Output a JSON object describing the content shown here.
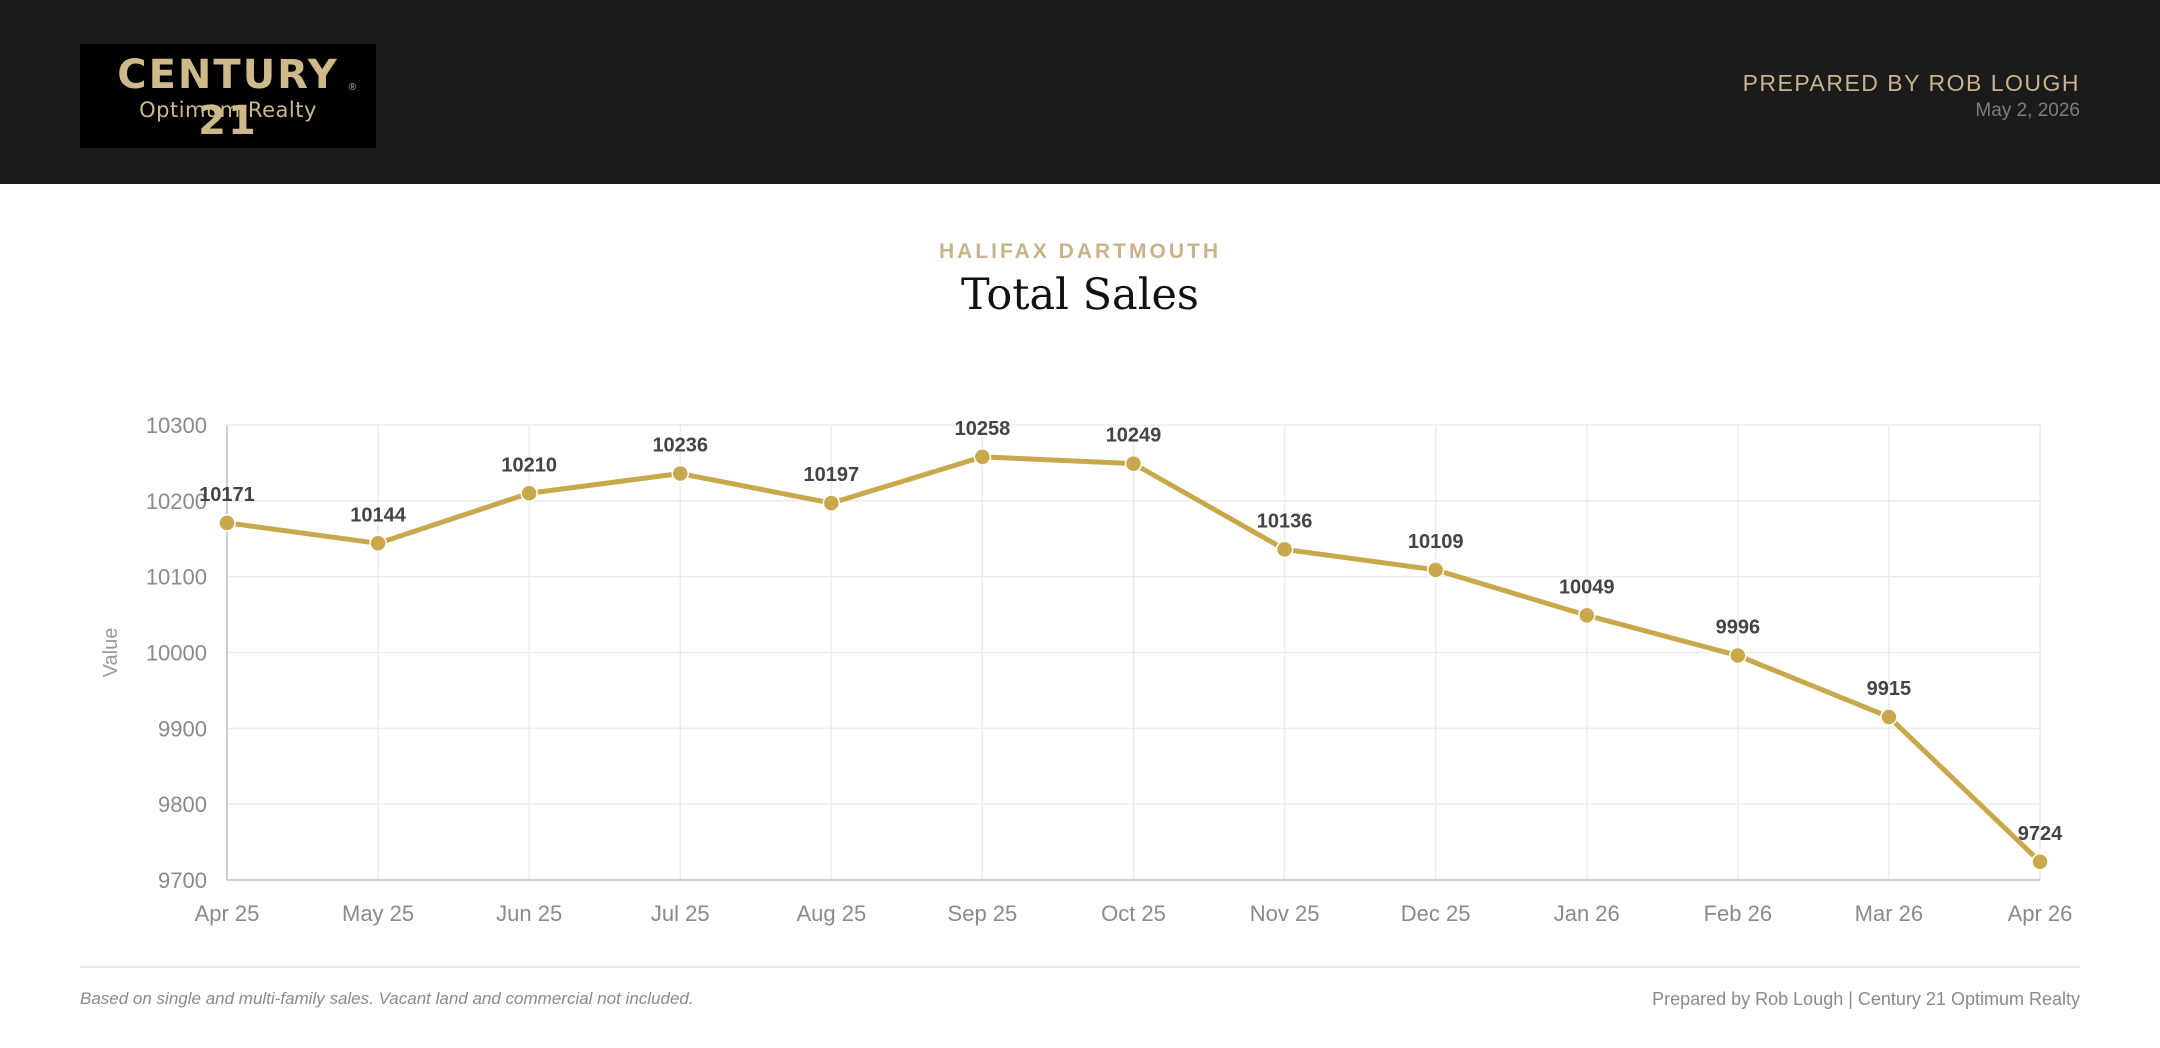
{
  "header": {
    "logo_main": "CENTURY 21",
    "logo_reg": "®",
    "logo_sub": "Optimum Realty",
    "prepared_by": "PREPARED BY ROB LOUGH",
    "date": "May 2, 2026"
  },
  "report": {
    "region": "HALIFAX DARTMOUTH",
    "title": "Total Sales"
  },
  "footer": {
    "note": "Based on single and multi-family sales. Vacant land and commercial not included.",
    "credit": "Prepared by Rob Lough | Century 21 Optimum Realty"
  },
  "colors": {
    "accent": "#c9a84c",
    "header_bg": "#1b1b1b",
    "gold_text": "#c8b38a"
  },
  "chart_data": {
    "type": "line",
    "title": "Total Sales",
    "subtitle": "HALIFAX DARTMOUTH",
    "xlabel": "",
    "ylabel": "Value",
    "categories": [
      "Apr 25",
      "May 25",
      "Jun 25",
      "Jul 25",
      "Aug 25",
      "Sep 25",
      "Oct 25",
      "Nov 25",
      "Dec 25",
      "Jan 26",
      "Feb 26",
      "Mar 26",
      "Apr 26"
    ],
    "series": [
      {
        "values": [
          10171,
          10144,
          10210,
          10236,
          10197,
          10258,
          10249,
          10136,
          10109,
          10049,
          9996,
          9915,
          9724
        ]
      }
    ],
    "ylim": [
      9700,
      10300
    ],
    "yticks": [
      9700,
      9800,
      9900,
      10000,
      10100,
      10200,
      10300
    ],
    "grid": true,
    "legend": "none",
    "data_labels": true
  }
}
